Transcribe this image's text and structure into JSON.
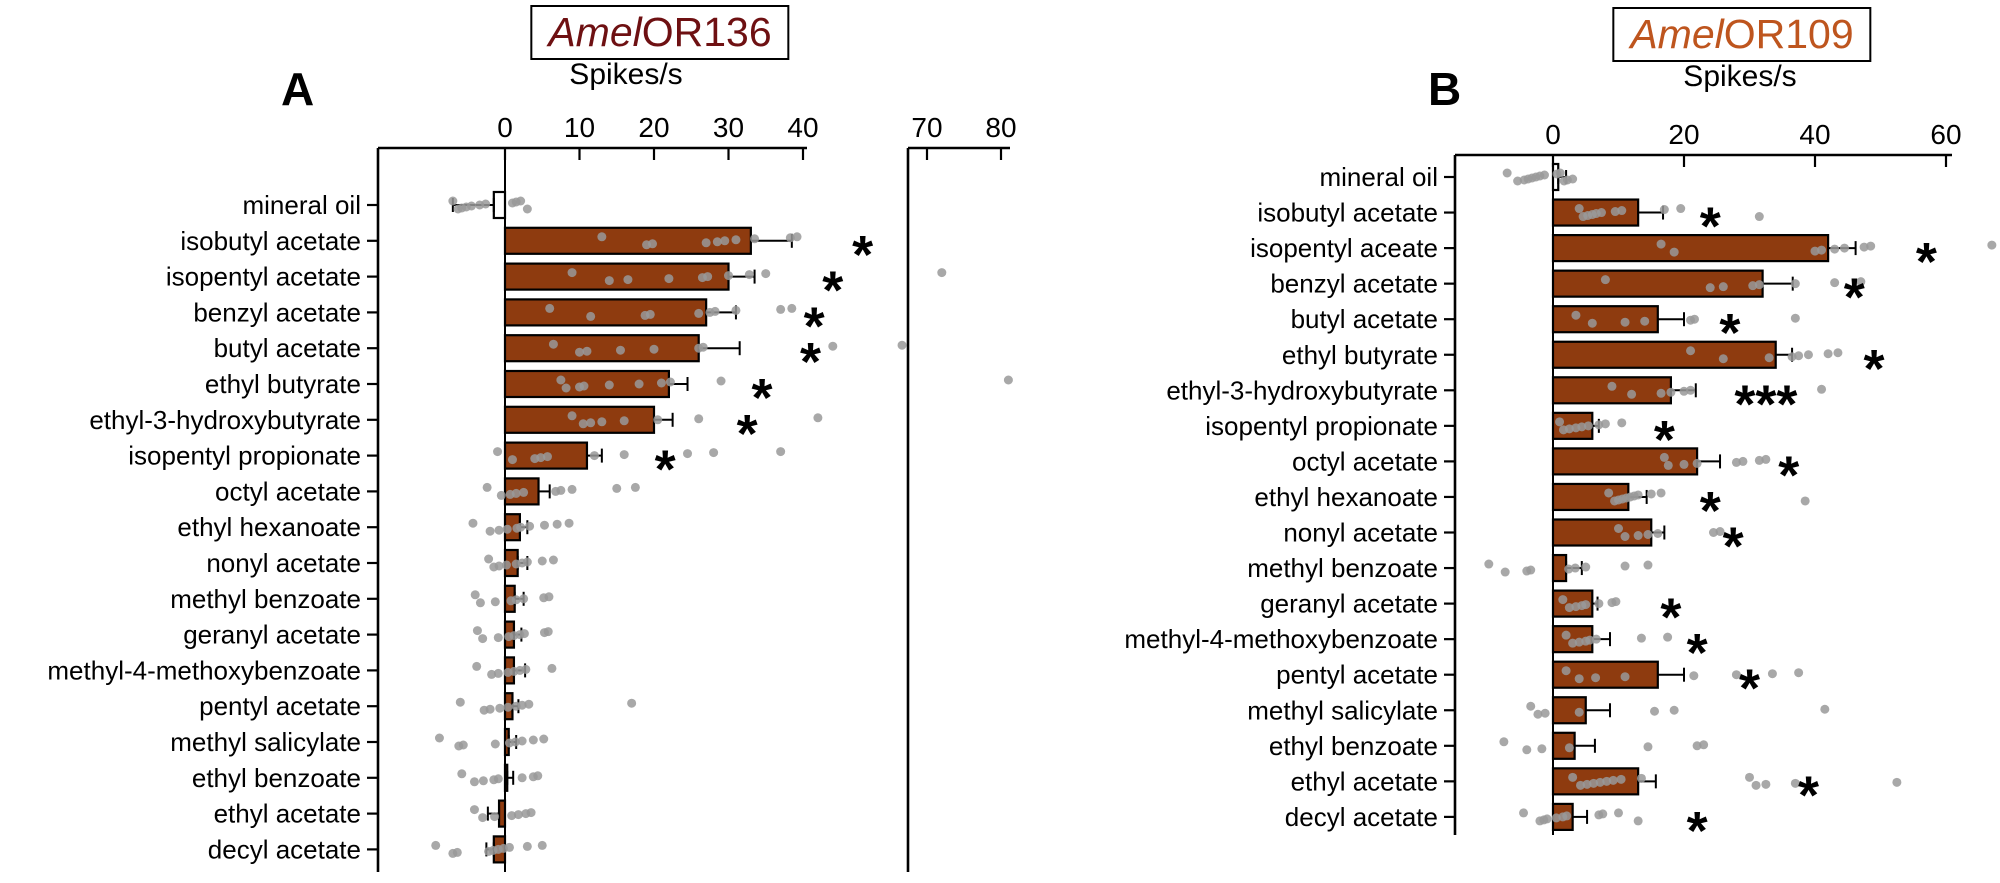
{
  "panels": [
    {
      "panel_label": "A",
      "title_italic": "Amel",
      "title_rest": "OR136",
      "title_color": "#6E1012"
    },
    {
      "panel_label": "B",
      "title_italic": "Amel",
      "title_rest": "OR109",
      "title_color": "#BE551E"
    }
  ],
  "chart_data": [
    {
      "type": "bar",
      "orientation": "horizontal",
      "title": "AmelOR136",
      "xlabel": "Spikes/s",
      "axis_ticks": [
        0,
        10,
        20,
        30,
        40
      ],
      "axis_break_ticks": [
        70,
        80
      ],
      "xlim": [
        -17,
        81
      ],
      "legend": "none",
      "grid": false,
      "control_index": 0,
      "bar_color": "#8E3B0F",
      "control_color": "#FFFFFF",
      "point_color": "#999999",
      "axis_color": "#000000",
      "categories": [
        "mineral oil",
        "isobutyl acetate",
        "isopentyl acetate",
        "benzyl acetate",
        "butyl acetate",
        "ethyl butyrate",
        "ethyl-3-hydroxybutyrate",
        "isopentyl propionate",
        "octyl acetate",
        "ethyl hexanoate",
        "nonyl acetate",
        "methyl benzoate",
        "geranyl acetate",
        "methyl-4-methoxybenzoate",
        "pentyl acetate",
        "methyl salicylate",
        "ethyl benzoate",
        "ethyl acetate",
        "decyl acetate"
      ],
      "values": [
        -1.5,
        33,
        30,
        27,
        26,
        22,
        20,
        11,
        4.5,
        2,
        1.7,
        1.3,
        1.2,
        1.2,
        1,
        0.5,
        0.3,
        -0.8,
        -1.5
      ],
      "errors": [
        5.5,
        5.5,
        3.5,
        4,
        5.5,
        2.5,
        2.5,
        2,
        1.5,
        1,
        1.3,
        1.2,
        1,
        1.5,
        0.8,
        1,
        0.8,
        1.5,
        1
      ],
      "sig": [
        "",
        "*",
        "*",
        "*",
        "*",
        "*",
        "*",
        "*",
        "",
        "",
        "",
        "",
        "",
        "",
        "",
        "",
        "",
        "",
        ""
      ],
      "sig_x": [
        0,
        48,
        44,
        41.5,
        41,
        34.5,
        32.5,
        21.5,
        0,
        0,
        0,
        0,
        0,
        0,
        0,
        0,
        0,
        0,
        0
      ],
      "points": [
        [
          -7,
          -6.3,
          -5.8,
          -5.2,
          -4.5,
          -3.4,
          -2.6,
          1,
          1.5,
          2.1,
          3
        ],
        [
          13,
          19,
          19.8,
          27,
          28.5,
          29.5,
          31,
          33.5,
          38.3,
          39.2
        ],
        [
          9,
          14,
          16.5,
          22,
          26.5,
          27.2,
          30,
          32.8,
          35,
          72
        ],
        [
          6,
          11.5,
          18.8,
          19.5,
          26,
          27.5,
          28.2,
          31,
          37,
          38.5
        ],
        [
          6.5,
          10,
          11,
          15.5,
          20,
          26,
          26.6,
          44,
          66
        ],
        [
          7.5,
          8.2,
          10,
          10.6,
          14,
          18,
          21,
          22.2,
          29,
          81
        ],
        [
          9,
          10.5,
          11.5,
          13,
          16,
          20.5,
          26,
          42
        ],
        [
          -1,
          1,
          4,
          4.8,
          5.7,
          12,
          16,
          24.5,
          28,
          37
        ],
        [
          -2.4,
          -0.5,
          0.7,
          1.5,
          2.5,
          6.8,
          7.5,
          9,
          15,
          17.5
        ],
        [
          -4.3,
          -2,
          -0.8,
          0.3,
          1.6,
          2.1,
          3.3,
          5.3,
          7,
          8.6
        ],
        [
          -2.2,
          -1.5,
          -0.8,
          0.2,
          1.5,
          2.3,
          3,
          5,
          6.5
        ],
        [
          -4,
          -3.3,
          -1.3,
          0.8,
          1.5,
          2.5,
          5.2,
          5.9
        ],
        [
          -3.7,
          -3,
          -0.9,
          0.5,
          1.2,
          2,
          2.6,
          5.3,
          5.8
        ],
        [
          -3.8,
          -1.8,
          -0.9,
          0.4,
          1.2,
          2,
          2.8,
          6.3
        ],
        [
          -6,
          -2.8,
          -2,
          -0.7,
          0.4,
          1.5,
          2.3,
          3.2,
          17
        ],
        [
          -8.8,
          -6.2,
          -5.6,
          -1.3,
          0.6,
          1.4,
          2.3,
          3.8,
          5.2
        ],
        [
          -5.8,
          -4.1,
          -2.9,
          -1.5,
          -0.9,
          2.3,
          3.8,
          4.4
        ],
        [
          -4.1,
          -3,
          -1.4,
          0.9,
          1.8,
          2.8,
          3.5
        ],
        [
          -9.3,
          -7,
          -6.4,
          -2.2,
          -1.6,
          -0.9,
          -0.2,
          0.6,
          3,
          5
        ]
      ]
    },
    {
      "type": "bar",
      "orientation": "horizontal",
      "title": "AmelOR109",
      "xlabel": "Spikes/s",
      "axis_ticks": [
        0,
        20,
        40,
        60
      ],
      "xlim": [
        -15,
        67
      ],
      "legend": "none",
      "grid": false,
      "control_index": 0,
      "bar_color": "#8E3B0F",
      "control_color": "#FFFFFF",
      "point_color": "#999999",
      "axis_color": "#000000",
      "categories": [
        "mineral oil",
        "isobutyl acetate",
        "isopentyl aceate",
        "benzyl acetate",
        "butyl acetate",
        "ethyl butyrate",
        "ethyl-3-hydroxybutyrate",
        "isopentyl propionate",
        "octyl acetate",
        "ethyl hexanoate",
        "nonyl acetate",
        "methyl benzoate",
        "geranyl acetate",
        "methyl-4-methoxybenzoate",
        "pentyl acetate",
        "methyl salicylate",
        "ethyl benzoate",
        "ethyl acetate",
        "decyl acetate"
      ],
      "values": [
        0.8,
        13,
        42,
        32,
        16,
        34,
        18,
        6,
        22,
        11.5,
        15,
        2,
        6,
        6,
        16,
        5,
        3.3,
        13,
        3
      ],
      "errors": [
        1.2,
        3.8,
        4.2,
        4.6,
        4,
        2.5,
        3.8,
        1,
        3.5,
        2.8,
        2,
        2.4,
        0.8,
        2.7,
        4,
        3.7,
        3.1,
        2.7,
        2.2
      ],
      "sig": [
        "",
        "*",
        "*",
        "*",
        "*",
        "*",
        "***",
        "*",
        "*",
        "*",
        "*",
        "",
        "*",
        "*",
        "*",
        "",
        "",
        "*",
        "*"
      ],
      "sig_x": [
        0,
        24,
        57,
        46,
        27,
        49,
        32.5,
        17,
        36,
        24,
        27.5,
        0,
        18,
        22,
        30,
        0,
        0,
        39,
        22
      ],
      "points": [
        [
          -7,
          -5.4,
          -4.4,
          -3.8,
          -3.2,
          -2.6,
          -2,
          -1.3,
          0.6,
          1.1,
          1.7,
          2.2,
          3
        ],
        [
          4,
          4.6,
          5.3,
          6,
          6.6,
          7.4,
          9.5,
          10.5,
          17,
          19.5,
          31.5
        ],
        [
          16.5,
          18.5,
          40,
          41,
          43,
          44.5,
          47.5,
          48.5,
          67
        ],
        [
          8,
          24,
          26,
          30.5,
          31.5,
          37,
          43,
          47
        ],
        [
          3.5,
          6,
          11,
          14,
          21,
          21.6,
          37
        ],
        [
          21,
          26,
          33,
          36.5,
          37.5,
          39,
          42,
          43.5
        ],
        [
          9,
          12,
          16.5,
          18,
          20,
          21,
          41
        ],
        [
          1,
          1.6,
          2.5,
          3.5,
          4.4,
          5.4,
          7,
          8,
          10.5
        ],
        [
          17,
          17.6,
          20,
          22,
          28,
          29,
          31.5,
          32.5
        ],
        [
          8.5,
          9.4,
          10,
          10.6,
          11.2,
          11.8,
          12.4,
          13,
          15,
          16.5,
          38.5
        ],
        [
          10,
          11,
          13,
          14.5,
          16,
          24.5,
          25.5
        ],
        [
          -9.8,
          -7.3,
          -4,
          -3.4,
          2.4,
          3.4,
          5,
          11,
          14.5
        ],
        [
          1.5,
          2.5,
          3.5,
          4.4,
          5,
          7,
          9,
          9.6
        ],
        [
          2,
          3,
          4,
          5,
          5.6,
          6.6,
          13.5,
          17.5
        ],
        [
          2,
          4,
          6.5,
          11,
          21.5,
          28,
          33.5,
          37.5
        ],
        [
          -3.4,
          -2.3,
          -1.2,
          4,
          15.5,
          18.5,
          41.5
        ],
        [
          -7.5,
          -4,
          -1.7,
          2.5,
          14.5,
          22,
          23
        ],
        [
          3,
          4.2,
          5.2,
          6.2,
          7.2,
          8.2,
          9.2,
          10.4,
          13.5,
          30,
          31,
          32.5,
          37,
          52.5
        ],
        [
          -4.5,
          -2,
          -1.4,
          -0.9,
          0.5,
          1.5,
          2.1,
          7,
          7.6,
          10,
          13
        ]
      ]
    }
  ]
}
